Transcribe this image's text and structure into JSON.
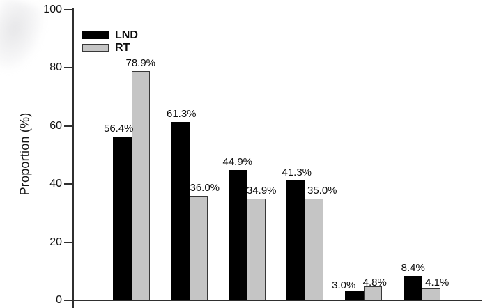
{
  "figure": {
    "background": "#ffffff",
    "artifact": "faint gray scan smudge in top-left corner"
  },
  "chart_data": {
    "type": "bar",
    "title": "",
    "xlabel": "",
    "ylabel": "Proportion (%)",
    "ylim": [
      0,
      100
    ],
    "yticks": [
      100,
      80,
      60,
      40,
      20,
      0
    ],
    "grid": false,
    "legend_position": "upper-left-inside",
    "categories": [
      "",
      "",
      "",
      "",
      "",
      ""
    ],
    "series": [
      {
        "name": "LND",
        "color": "#000000",
        "values": [
          56.4,
          61.3,
          44.9,
          41.3,
          3.0,
          8.4
        ],
        "labels": [
          "56.4%",
          "61.3%",
          "44.9%",
          "41.3%",
          "3.0%",
          "8.4%"
        ]
      },
      {
        "name": "RT",
        "color": "#c5c5c5",
        "values": [
          78.9,
          36.0,
          34.9,
          35.0,
          4.8,
          4.1
        ],
        "labels": [
          "78.9%",
          "36.0%",
          "34.9%",
          "35.0%",
          "4.8%",
          "4.1%"
        ]
      }
    ]
  }
}
